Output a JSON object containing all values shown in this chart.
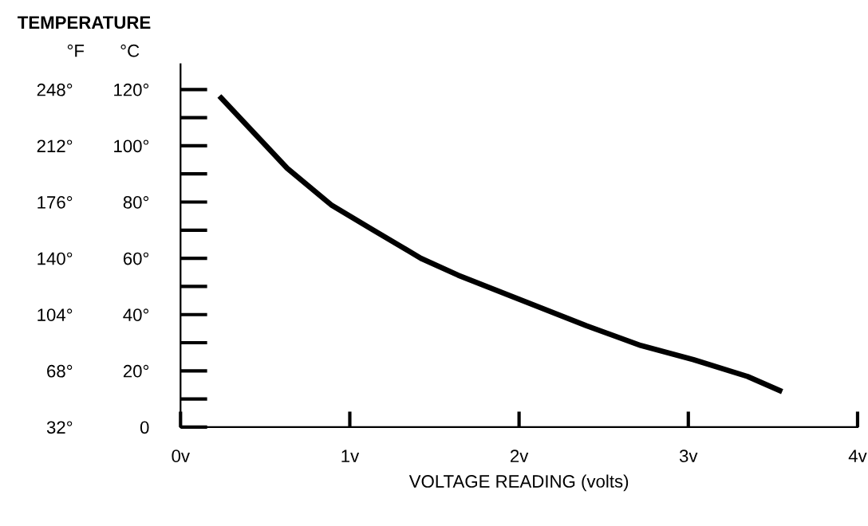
{
  "chart_data": {
    "type": "line",
    "title": "TEMPERATURE",
    "xlabel": "VOLTAGE READING (volts)",
    "ylabel": "°C",
    "y2label": "°F",
    "series": [
      {
        "color": "#000000",
        "x": [
          0.24,
          0.63,
          0.89,
          1.14,
          1.42,
          1.64,
          2.02,
          2.4,
          2.72,
          3.03,
          3.35,
          3.54
        ],
        "values": [
          117,
          92,
          79,
          70,
          60,
          54,
          45,
          36,
          29,
          24,
          18,
          13
        ]
      }
    ],
    "xlim": [
      0,
      4
    ],
    "xticks": [
      {
        "value": 0,
        "label": "0v"
      },
      {
        "value": 1,
        "label": "1v"
      },
      {
        "value": 2,
        "label": "2v"
      },
      {
        "value": 3,
        "label": "3v"
      },
      {
        "value": 4,
        "label": "4v"
      }
    ],
    "ylim": [
      0,
      129
    ],
    "yticks": [
      0,
      {
        "value": 20,
        "label": "20°"
      },
      {
        "value": 40,
        "label": "40°"
      },
      {
        "value": 60,
        "label": "60°"
      },
      {
        "value": 80,
        "label": "80°"
      },
      {
        "value": 100,
        "label": "100°"
      },
      {
        "value": 120,
        "label": "120°"
      }
    ],
    "y2lim": [
      32,
      264.2
    ],
    "y2ticks": [
      {
        "value": 32,
        "label": "32°"
      },
      {
        "value": 68,
        "label": "68°"
      },
      {
        "value": 104,
        "label": "104°"
      },
      {
        "value": 140,
        "label": "140°"
      },
      {
        "value": 176,
        "label": "176°"
      },
      {
        "value": 212,
        "label": "212°"
      },
      {
        "value": 248,
        "label": "248°"
      }
    ],
    "grid": false,
    "legend": false,
    "marker": "none",
    "line_style": "solid"
  }
}
